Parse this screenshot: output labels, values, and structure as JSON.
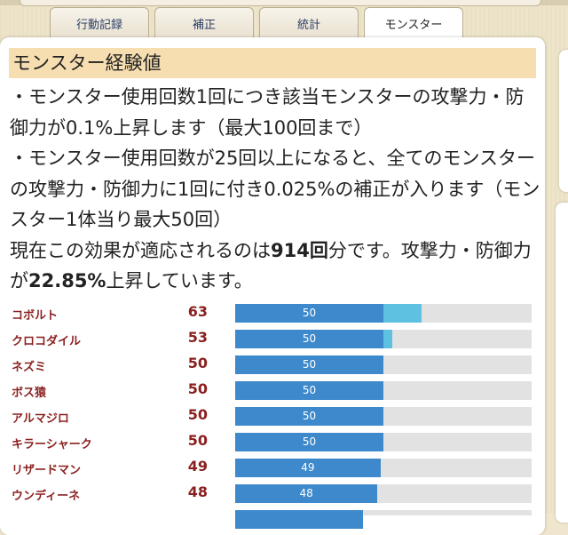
{
  "tabs": [
    {
      "label": "行動記録",
      "active": false
    },
    {
      "label": "補正",
      "active": false
    },
    {
      "label": "統計",
      "active": false
    },
    {
      "label": "モンスター",
      "active": true
    }
  ],
  "section": {
    "title": "モンスター経験値",
    "line1": "・モンスター使用回数1回につき該当モンスターの攻撃力・防御力が0.1%上昇します（最大100回まで）",
    "line2": "・モンスター使用回数が25回以上になると、全てのモンスターの攻撃力・防御力に1回に付き0.025%の補正が入ります（モンスター1体当り最大50回）",
    "effect_prefix": "現在この効果が適応されるのは",
    "effect_count": "914回",
    "effect_mid": "分です。攻撃力・防御力が",
    "effect_percent": "22.85%",
    "effect_suffix": "上昇しています。"
  },
  "bar_max": 100,
  "colors": {
    "base": "#3d89cb",
    "extra": "#5ec1e2",
    "track": "#e2e2e2",
    "name": "#8a1f1f"
  },
  "monsters": [
    {
      "name": "コボルト",
      "count": "63",
      "base": 50,
      "total": 63,
      "label": "50"
    },
    {
      "name": "クロコダイル",
      "count": "53",
      "base": 50,
      "total": 53,
      "label": "50"
    },
    {
      "name": "ネズミ",
      "count": "50",
      "base": 50,
      "total": 50,
      "label": "50"
    },
    {
      "name": "ボス猿",
      "count": "50",
      "base": 50,
      "total": 50,
      "label": "50"
    },
    {
      "name": "アルマジロ",
      "count": "50",
      "base": 50,
      "total": 50,
      "label": "50"
    },
    {
      "name": "キラーシャーク",
      "count": "50",
      "base": 50,
      "total": 50,
      "label": "50"
    },
    {
      "name": "リザードマン",
      "count": "49",
      "base": 49,
      "total": 49,
      "label": "49"
    },
    {
      "name": "ウンディーネ",
      "count": "48",
      "base": 48,
      "total": 48,
      "label": "48"
    }
  ]
}
